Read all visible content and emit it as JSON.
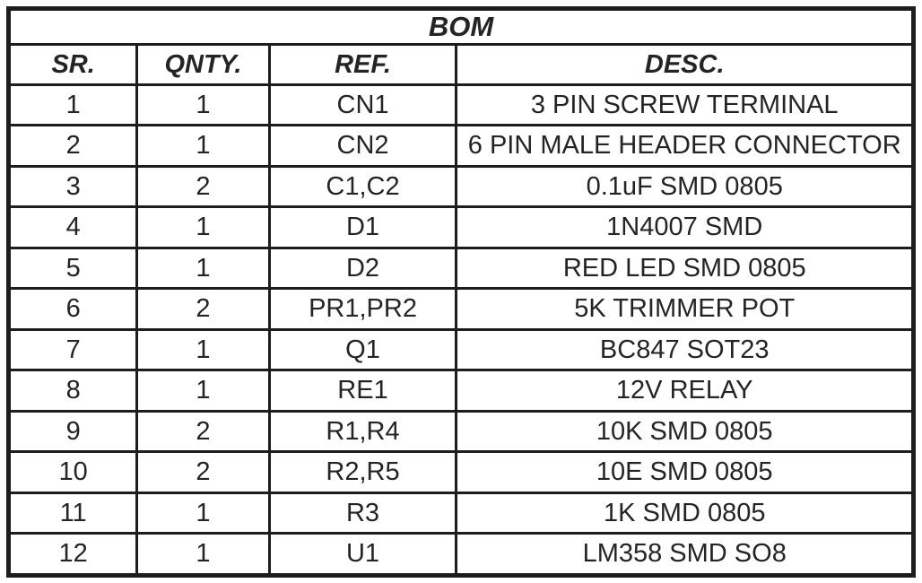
{
  "table": {
    "title": "BOM",
    "columns": [
      {
        "key": "sr",
        "label": "SR."
      },
      {
        "key": "qnty",
        "label": "QNTY."
      },
      {
        "key": "ref",
        "label": "REF."
      },
      {
        "key": "desc",
        "label": "DESC."
      }
    ],
    "rows": [
      {
        "sr": "1",
        "qnty": "1",
        "ref": "CN1",
        "desc": "3 PIN SCREW TERMINAL"
      },
      {
        "sr": "2",
        "qnty": "1",
        "ref": "CN2",
        "desc": "6 PIN MALE HEADER CONNECTOR"
      },
      {
        "sr": "3",
        "qnty": "2",
        "ref": "C1,C2",
        "desc": "0.1uF SMD 0805"
      },
      {
        "sr": "4",
        "qnty": "1",
        "ref": "D1",
        "desc": "1N4007 SMD"
      },
      {
        "sr": "5",
        "qnty": "1",
        "ref": "D2",
        "desc": "RED LED SMD 0805"
      },
      {
        "sr": "6",
        "qnty": "2",
        "ref": "PR1,PR2",
        "desc": "5K TRIMMER POT"
      },
      {
        "sr": "7",
        "qnty": "1",
        "ref": "Q1",
        "desc": "BC847 SOT23"
      },
      {
        "sr": "8",
        "qnty": "1",
        "ref": "RE1",
        "desc": "12V RELAY"
      },
      {
        "sr": "9",
        "qnty": "2",
        "ref": "R1,R4",
        "desc": "10K SMD 0805"
      },
      {
        "sr": "10",
        "qnty": "2",
        "ref": "R2,R5",
        "desc": "10E SMD 0805"
      },
      {
        "sr": "11",
        "qnty": "1",
        "ref": "R3",
        "desc": "1K SMD 0805"
      },
      {
        "sr": "12",
        "qnty": "1",
        "ref": "U1",
        "desc": "LM358 SMD SO8"
      }
    ]
  },
  "colors": {
    "border": "#1d1d1b",
    "text": "#242424",
    "background": "#ffffff"
  }
}
